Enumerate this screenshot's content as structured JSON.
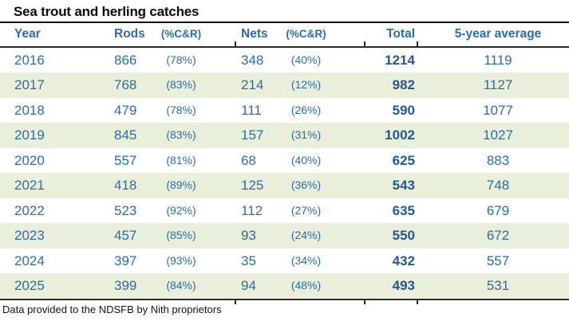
{
  "title": "Sea trout and herling catches",
  "footer": "Data provided to the NDSFB by Nith proprietors",
  "colors": {
    "accent": "#2e6da4",
    "accent-dark": "#25598f",
    "stripe": "#e9efda",
    "rule": "#2b2b2b"
  },
  "table": {
    "columns": [
      "Year",
      "Rods",
      "(%C&R)",
      "Nets",
      "(%C&R)",
      "Total",
      "5-year average"
    ],
    "rows": [
      {
        "year": "2016",
        "rods": "866",
        "rods_cr": "(78%)",
        "nets": "348",
        "nets_cr": "(40%)",
        "total": "1214",
        "avg": "1119"
      },
      {
        "year": "2017",
        "rods": "768",
        "rods_cr": "(83%)",
        "nets": "214",
        "nets_cr": "(12%)",
        "total": "982",
        "avg": "1127"
      },
      {
        "year": "2018",
        "rods": "479",
        "rods_cr": "(78%)",
        "nets": "111",
        "nets_cr": "(26%)",
        "total": "590",
        "avg": "1077"
      },
      {
        "year": "2019",
        "rods": "845",
        "rods_cr": "(83%)",
        "nets": "157",
        "nets_cr": "(31%)",
        "total": "1002",
        "avg": "1027"
      },
      {
        "year": "2020",
        "rods": "557",
        "rods_cr": "(81%)",
        "nets": "68",
        "nets_cr": "(40%)",
        "total": "625",
        "avg": "883"
      },
      {
        "year": "2021",
        "rods": "418",
        "rods_cr": "(89%)",
        "nets": "125",
        "nets_cr": "(36%)",
        "total": "543",
        "avg": "748"
      },
      {
        "year": "2022",
        "rods": "523",
        "rods_cr": "(92%)",
        "nets": "112",
        "nets_cr": "(27%)",
        "total": "635",
        "avg": "679"
      },
      {
        "year": "2023",
        "rods": "457",
        "rods_cr": "(85%)",
        "nets": "93",
        "nets_cr": "(24%)",
        "total": "550",
        "avg": "672"
      },
      {
        "year": "2024",
        "rods": "397",
        "rods_cr": "(93%)",
        "nets": "35",
        "nets_cr": "(34%)",
        "total": "432",
        "avg": "557"
      },
      {
        "year": "2025",
        "rods": "399",
        "rods_cr": "(84%)",
        "nets": "94",
        "nets_cr": "(48%)",
        "total": "493",
        "avg": "531"
      }
    ]
  },
  "chart_data": {
    "type": "table",
    "title": "Sea trout and herling catches",
    "columns": [
      "Year",
      "Rods",
      "Rods %C&R",
      "Nets",
      "Nets %C&R",
      "Total",
      "5-year average"
    ],
    "rows": [
      [
        2016,
        866,
        "78%",
        348,
        "40%",
        1214,
        1119
      ],
      [
        2017,
        768,
        "83%",
        214,
        "12%",
        982,
        1127
      ],
      [
        2018,
        479,
        "78%",
        111,
        "26%",
        590,
        1077
      ],
      [
        2019,
        845,
        "83%",
        157,
        "31%",
        1002,
        1027
      ],
      [
        2020,
        557,
        "81%",
        68,
        "40%",
        625,
        883
      ],
      [
        2021,
        418,
        "89%",
        125,
        "36%",
        543,
        748
      ],
      [
        2022,
        523,
        "92%",
        112,
        "27%",
        635,
        679
      ],
      [
        2023,
        457,
        "85%",
        93,
        "24%",
        550,
        672
      ],
      [
        2024,
        397,
        "93%",
        35,
        "34%",
        432,
        557
      ],
      [
        2025,
        399,
        "84%",
        94,
        "48%",
        493,
        531
      ]
    ],
    "source_note": "Data provided to the NDSFB by Nith proprietors"
  }
}
